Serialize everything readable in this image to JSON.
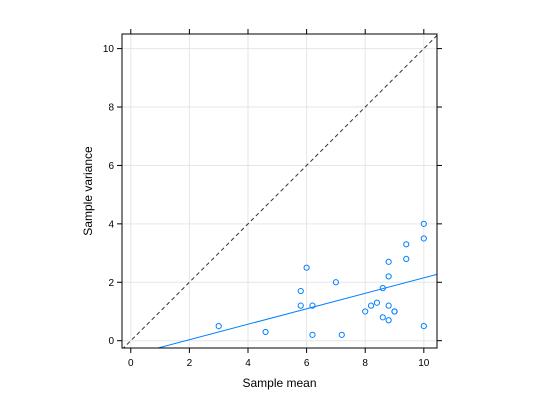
{
  "chart_data": {
    "type": "scatter",
    "title": "",
    "xlabel": "Sample mean",
    "ylabel": "Sample variance",
    "xlim": [
      -0.3,
      10.45
    ],
    "ylim": [
      -0.25,
      10.5
    ],
    "xticks": [
      0,
      2,
      4,
      6,
      8,
      10
    ],
    "yticks": [
      0,
      2,
      4,
      6,
      8,
      10
    ],
    "grid": true,
    "legend": "none",
    "colors": {
      "points": "#0080ff",
      "fit_line": "#0080ff",
      "reference_line": "#333333",
      "grid": "#e6e6e6",
      "frame": "#000000"
    },
    "points": {
      "x": [
        3.0,
        4.6,
        5.8,
        5.8,
        6.0,
        6.2,
        6.2,
        7.0,
        7.2,
        8.0,
        8.2,
        8.4,
        8.6,
        8.6,
        8.8,
        8.8,
        8.8,
        8.8,
        9.0,
        9.0,
        9.4,
        9.4,
        10.0,
        10.0,
        10.0
      ],
      "y": [
        0.5,
        0.3,
        1.7,
        1.2,
        2.5,
        1.2,
        0.2,
        2.0,
        0.2,
        1.0,
        1.2,
        1.3,
        1.8,
        0.8,
        2.7,
        2.2,
        1.2,
        0.7,
        1.0,
        1.0,
        3.3,
        2.8,
        4.0,
        3.5,
        0.5
      ]
    },
    "fit_line": {
      "x": [
        0.93,
        10.45
      ],
      "y": [
        -0.25,
        2.27
      ]
    },
    "reference_line": {
      "x": [
        -0.3,
        10.45
      ],
      "y": [
        -0.3,
        10.45
      ],
      "style": "dashed"
    }
  }
}
